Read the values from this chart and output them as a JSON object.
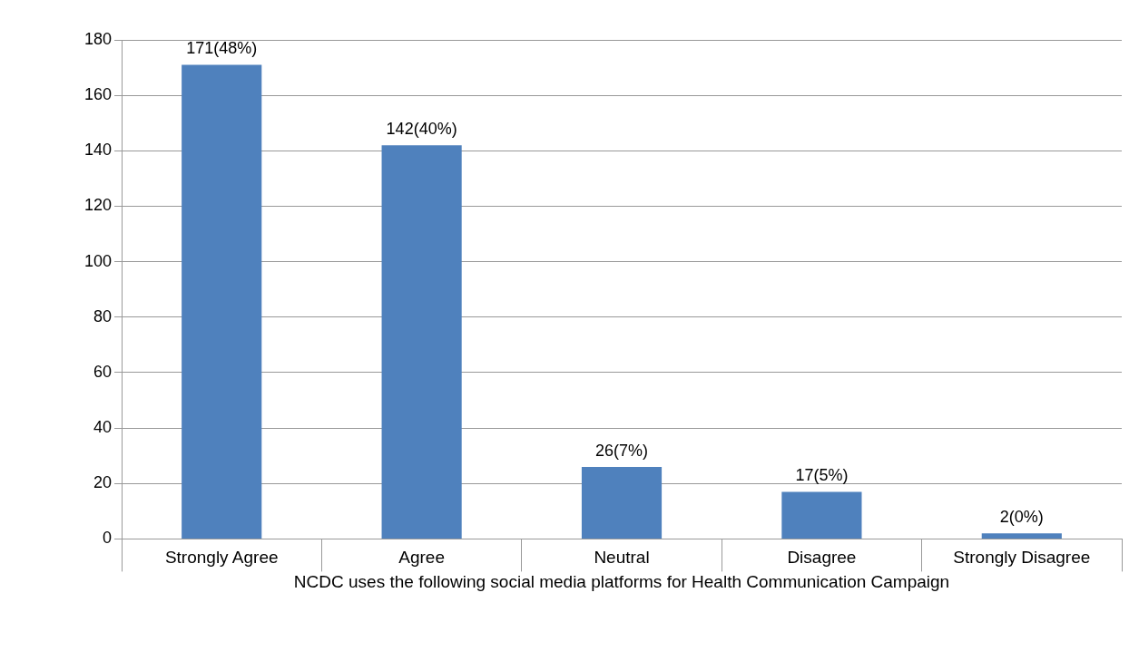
{
  "chart_data": {
    "type": "bar",
    "xlabel": "NCDC uses the following social media platforms for Health Communication Campaign",
    "categories": [
      "Strongly Agree",
      "Agree",
      "Neutral",
      "Disagree",
      "Strongly Disagree"
    ],
    "values": [
      171,
      142,
      26,
      17,
      2
    ],
    "value_labels": [
      "171(48%)",
      "142(40%)",
      "26(7%)",
      "17(5%)",
      "2(0%)"
    ],
    "color": "#4f81bd",
    "ylim": [
      0,
      180
    ],
    "yticks": [
      0,
      20,
      40,
      60,
      80,
      100,
      120,
      140,
      160,
      180
    ],
    "grid": "y",
    "legend": false
  }
}
